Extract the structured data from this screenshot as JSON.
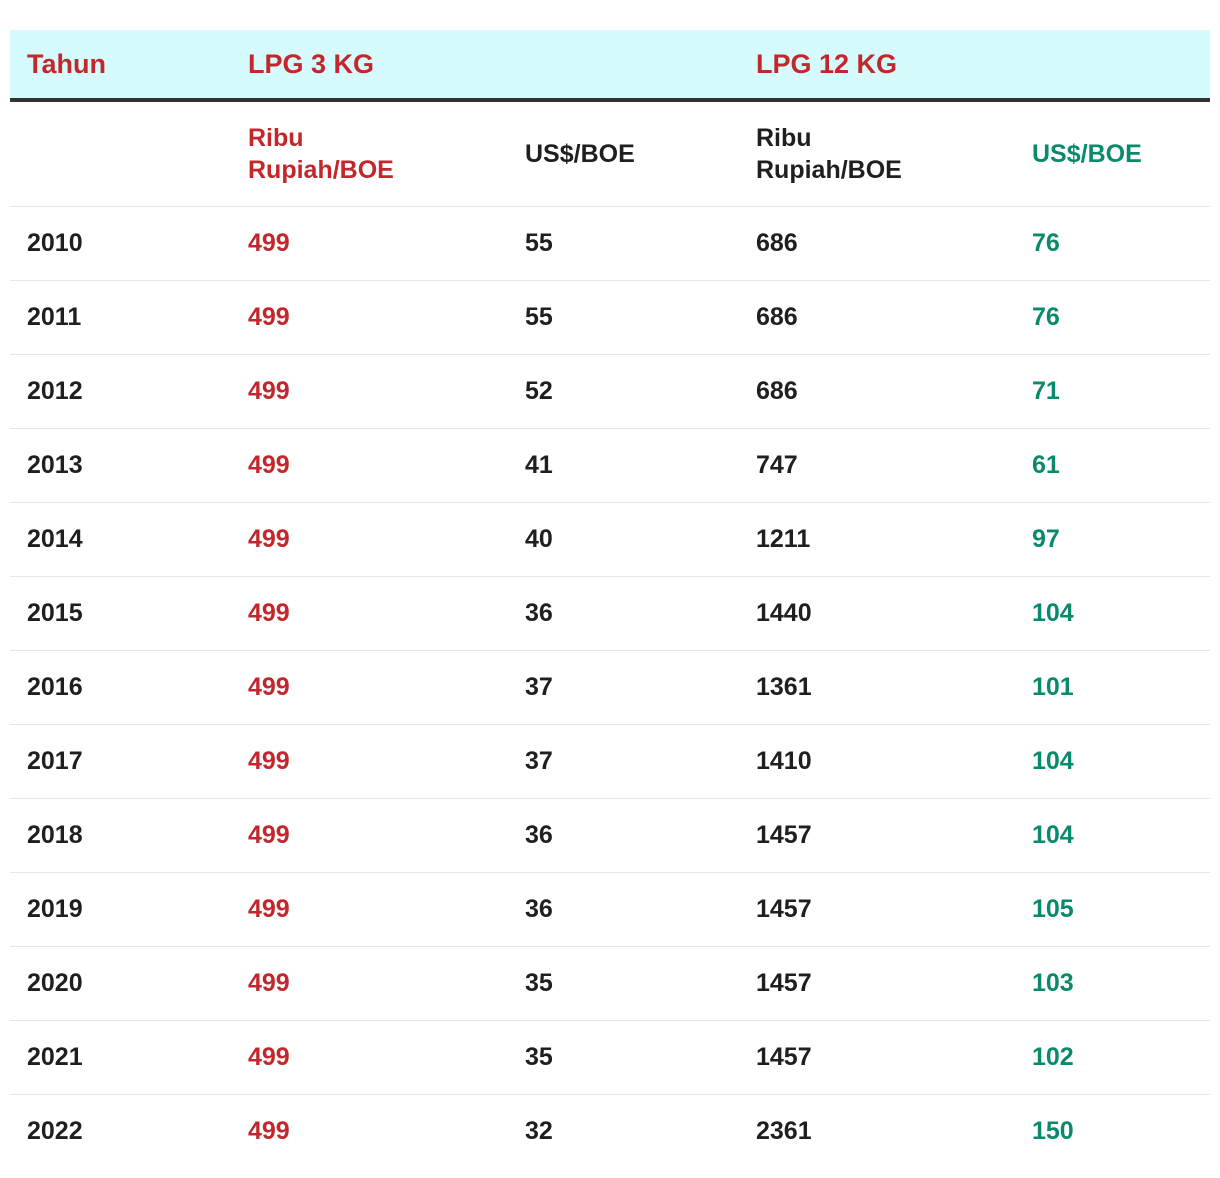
{
  "chart_data": {
    "type": "table",
    "title": "",
    "header": {
      "year_label": "Tahun",
      "group_3kg": "LPG 3 KG",
      "group_12kg": "LPG 12 KG"
    },
    "subheader": {
      "kg3_rupiah": "Ribu Rupiah/BOE",
      "kg3_usd": "US$/BOE",
      "kg12_rupiah": "Ribu Rupiah/BOE",
      "kg12_usd": "US$/BOE"
    },
    "columns": [
      "Tahun",
      "LPG 3 KG Ribu Rupiah/BOE",
      "LPG 3 KG US$/BOE",
      "LPG 12 KG Ribu Rupiah/BOE",
      "LPG 12 KG US$/BOE"
    ],
    "rows": [
      [
        "2010",
        "499",
        "55",
        "686",
        "76"
      ],
      [
        "2011",
        "499",
        "55",
        "686",
        "76"
      ],
      [
        "2012",
        "499",
        "52",
        "686",
        "71"
      ],
      [
        "2013",
        "499",
        "41",
        "747",
        "61"
      ],
      [
        "2014",
        "499",
        "40",
        "1211",
        "97"
      ],
      [
        "2015",
        "499",
        "36",
        "1440",
        "104"
      ],
      [
        "2016",
        "499",
        "37",
        "1361",
        "101"
      ],
      [
        "2017",
        "499",
        "37",
        "1410",
        "104"
      ],
      [
        "2018",
        "499",
        "36",
        "1457",
        "104"
      ],
      [
        "2019",
        "499",
        "36",
        "1457",
        "105"
      ],
      [
        "2020",
        "499",
        "35",
        "1457",
        "103"
      ],
      [
        "2021",
        "499",
        "35",
        "1457",
        "102"
      ],
      [
        "2022",
        "499",
        "32",
        "2361",
        "150"
      ]
    ]
  },
  "colors": {
    "header_bg": "#d5fbfd",
    "header_text": "#c3262b",
    "rupiah_3kg": "#c3262b",
    "usd_12kg": "#0a8a6c",
    "default_text": "#1f1f1f",
    "header_rule": "#333333",
    "row_rule": "#e6e6e6"
  }
}
